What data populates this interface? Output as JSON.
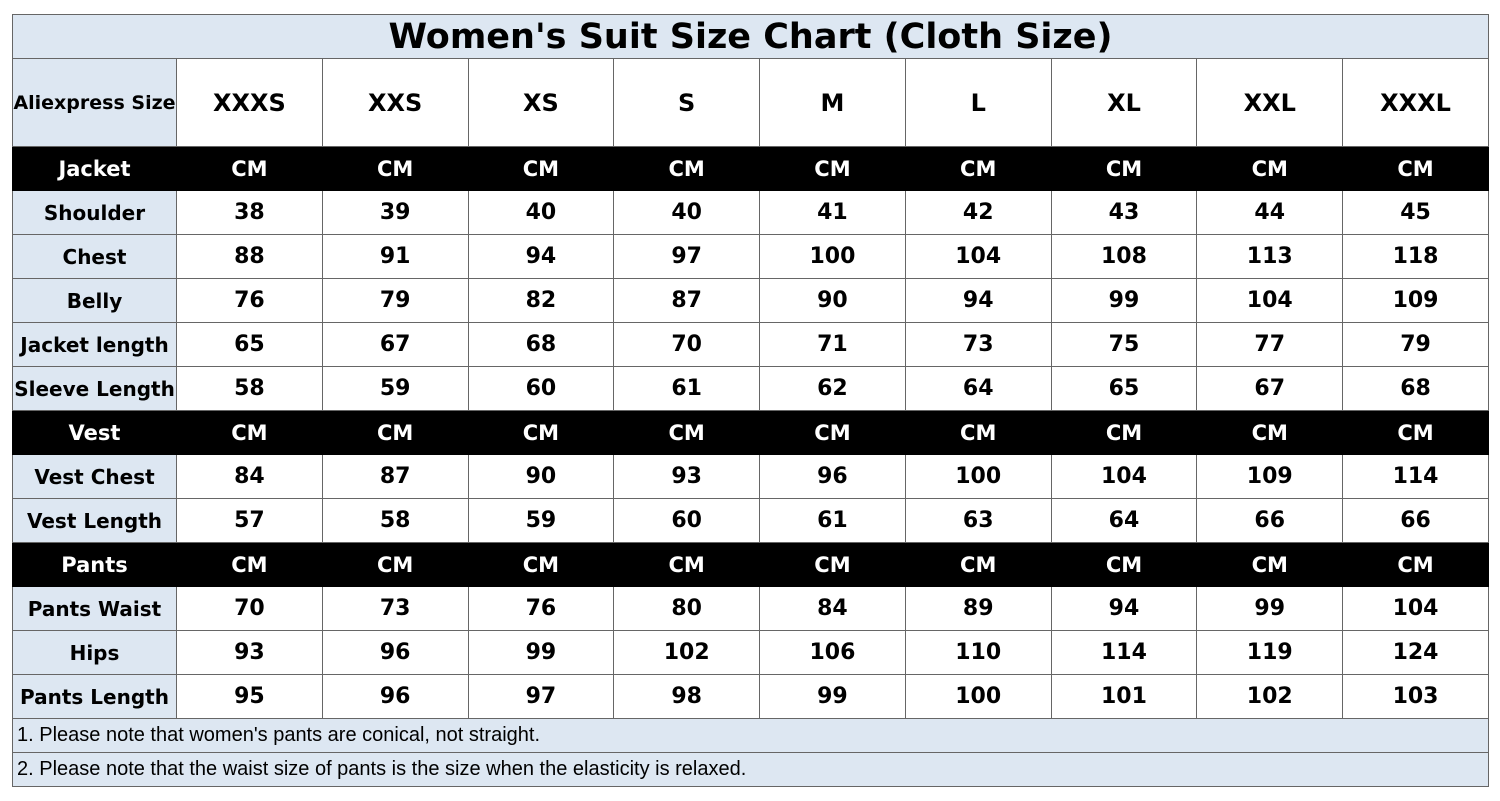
{
  "title": "Women's Suit Size Chart (Cloth Size)",
  "header": {
    "label": "Aliexpress Size",
    "sizes": [
      "XXXS",
      "XXS",
      "XS",
      "S",
      "M",
      "L",
      "XL",
      "XXL",
      "XXXL"
    ]
  },
  "sections": [
    {
      "name": "Jacket",
      "units": [
        "CM",
        "CM",
        "CM",
        "CM",
        "CM",
        "CM",
        "CM",
        "CM",
        "CM"
      ],
      "rows": [
        {
          "label": "Shoulder",
          "values": [
            38,
            39,
            40,
            40,
            41,
            42,
            43,
            44,
            45
          ]
        },
        {
          "label": "Chest",
          "values": [
            88,
            91,
            94,
            97,
            100,
            104,
            108,
            113,
            118
          ]
        },
        {
          "label": "Belly",
          "values": [
            76,
            79,
            82,
            87,
            90,
            94,
            99,
            104,
            109
          ]
        },
        {
          "label": "Jacket length",
          "values": [
            65,
            67,
            68,
            70,
            71,
            73,
            75,
            77,
            79
          ]
        },
        {
          "label": "Sleeve Length",
          "values": [
            58,
            59,
            60,
            61,
            62,
            64,
            65,
            67,
            68
          ]
        }
      ]
    },
    {
      "name": "Vest",
      "units": [
        "CM",
        "CM",
        "CM",
        "CM",
        "CM",
        "CM",
        "CM",
        "CM",
        "CM"
      ],
      "rows": [
        {
          "label": "Vest Chest",
          "values": [
            84,
            87,
            90,
            93,
            96,
            100,
            104,
            109,
            114
          ]
        },
        {
          "label": "Vest Length",
          "values": [
            57,
            58,
            59,
            60,
            61,
            63,
            64,
            66,
            66
          ]
        }
      ]
    },
    {
      "name": "Pants",
      "units": [
        "CM",
        "CM",
        "CM",
        "CM",
        "CM",
        "CM",
        "CM",
        "CM",
        "CM"
      ],
      "rows": [
        {
          "label": "Pants Waist",
          "values": [
            70,
            73,
            76,
            80,
            84,
            89,
            94,
            99,
            104
          ]
        },
        {
          "label": "Hips",
          "values": [
            93,
            96,
            99,
            102,
            106,
            110,
            114,
            119,
            124
          ]
        },
        {
          "label": "Pants Length",
          "values": [
            95,
            96,
            97,
            98,
            99,
            100,
            101,
            102,
            103
          ]
        }
      ]
    }
  ],
  "notes": [
    "1. Please note that women's pants are conical, not straight.",
    "2. Please note that the waist size of pants is the size when the elasticity is relaxed."
  ]
}
